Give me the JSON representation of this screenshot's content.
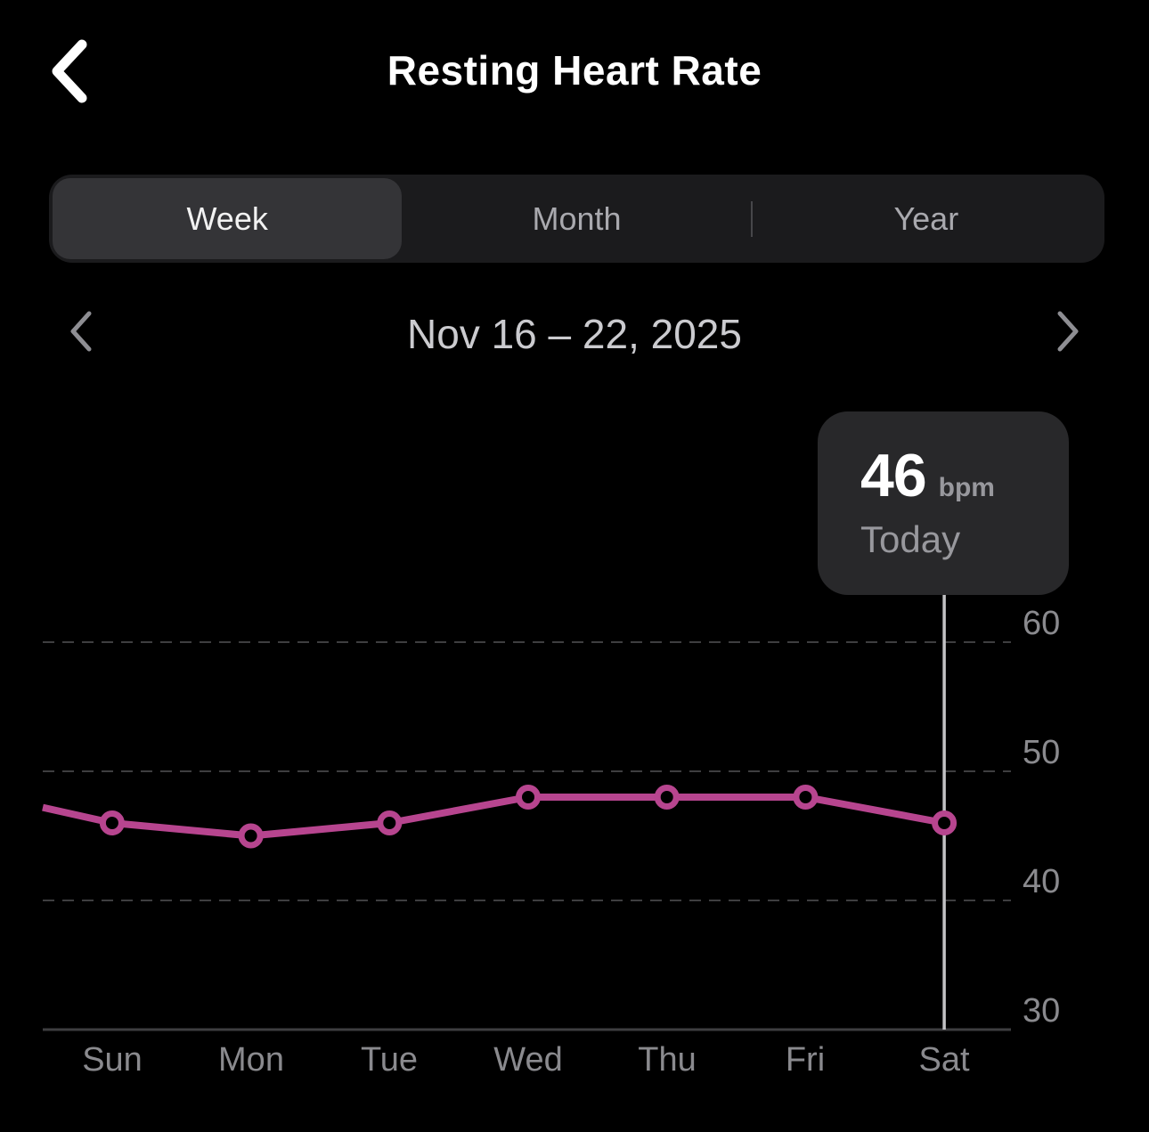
{
  "header": {
    "title": "Resting Heart Rate",
    "back_icon": "chevron-left"
  },
  "tabs": {
    "week": "Week",
    "month": "Month",
    "year": "Year",
    "selected": "Week"
  },
  "date_nav": {
    "label": "Nov 16 – 22, 2025",
    "prev_icon": "chevron-left",
    "next_icon": "chevron-right"
  },
  "tooltip": {
    "value": "46",
    "unit": "bpm",
    "label": "Today"
  },
  "colors": {
    "line": "#b7458f",
    "marker_fill": "#000000",
    "cursor_line": "#c2c2c4",
    "grid": "#3e3e40",
    "axis_label": "#8a8a8e",
    "tooltip_bg": "#28282a"
  },
  "chart_data": {
    "type": "line",
    "title": "Resting Heart Rate",
    "unit": "bpm",
    "categories": [
      "Sun",
      "Mon",
      "Tue",
      "Wed",
      "Thu",
      "Fri",
      "Sat"
    ],
    "series": [
      {
        "name": "Resting heart rate (bpm)",
        "values": [
          46,
          45,
          46,
          48,
          48,
          48,
          46
        ]
      }
    ],
    "y_ticks": [
      30,
      40,
      50,
      60
    ],
    "ylim": [
      30,
      63
    ],
    "grid": "horizontal-dashed",
    "legend": "none",
    "selected_index": 6,
    "selected_value": 46,
    "selected_label": "Today",
    "lead_in_value": 47.2
  }
}
